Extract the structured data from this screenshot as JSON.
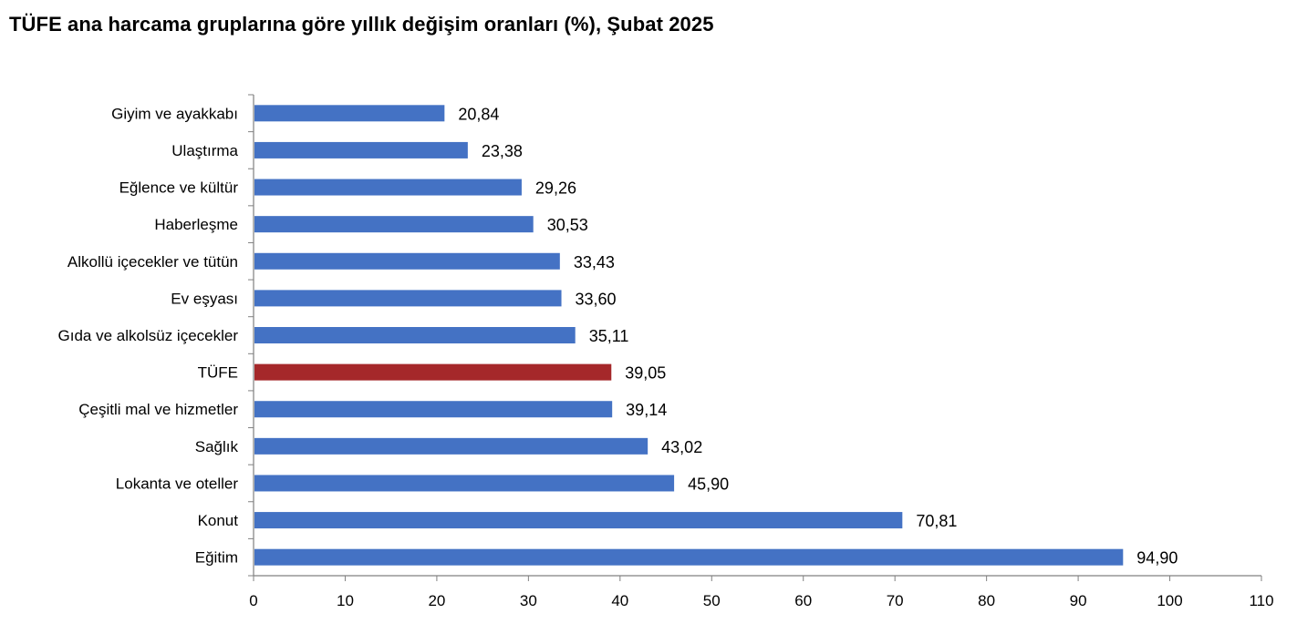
{
  "chart_data": {
    "type": "bar",
    "orientation": "horizontal",
    "title": "TÜFE ana harcama gruplarına göre yıllık değişim oranları (%), Şubat 2025",
    "categories": [
      "Giyim ve ayakkabı",
      "Ulaştırma",
      "Eğlence ve kültür",
      "Haberleşme",
      "Alkollü içecekler ve tütün",
      "Ev eşyası",
      "Gıda ve alkolsüz içecekler",
      "TÜFE",
      "Çeşitli mal ve hizmetler",
      "Sağlık",
      "Lokanta ve oteller",
      "Konut",
      "Eğitim"
    ],
    "values": [
      20.84,
      23.38,
      29.26,
      30.53,
      33.43,
      33.6,
      35.11,
      39.05,
      39.14,
      43.02,
      45.9,
      70.81,
      94.9
    ],
    "value_labels": [
      "20,84",
      "23,38",
      "29,26",
      "30,53",
      "33,43",
      "33,60",
      "35,11",
      "39,05",
      "39,14",
      "43,02",
      "45,90",
      "70,81",
      "94,90"
    ],
    "highlight_category": "TÜFE",
    "xlim": [
      0,
      110
    ],
    "xticks": [
      0,
      10,
      20,
      30,
      40,
      50,
      60,
      70,
      80,
      90,
      100,
      110
    ],
    "xlabel": "",
    "ylabel": "",
    "grid": false,
    "colors": {
      "bar": "#4472C4",
      "highlight": "#A5282A",
      "axis": "#808080"
    }
  }
}
